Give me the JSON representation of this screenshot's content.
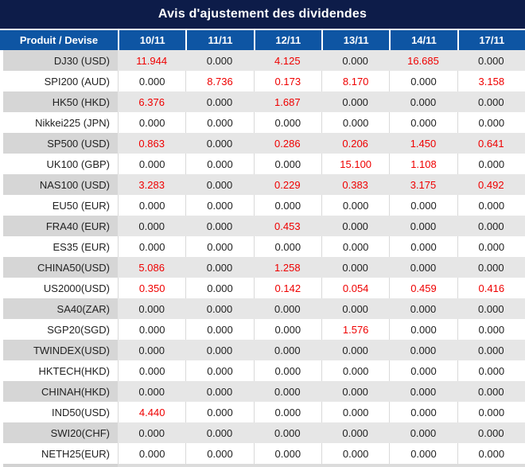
{
  "chart_data": {
    "type": "table",
    "title": "Avis d'ajustement des dividendes",
    "columns": [
      "Produit / Devise",
      "10/11",
      "11/11",
      "12/11",
      "13/11",
      "14/11",
      "17/11"
    ],
    "rows": [
      {
        "product": "DJ30 (USD)",
        "values": [
          "11.944",
          "0.000",
          "4.125",
          "0.000",
          "16.685",
          "0.000"
        ]
      },
      {
        "product": "SPI200 (AUD)",
        "values": [
          "0.000",
          "8.736",
          "0.173",
          "8.170",
          "0.000",
          "3.158"
        ]
      },
      {
        "product": "HK50 (HKD)",
        "values": [
          "6.376",
          "0.000",
          "1.687",
          "0.000",
          "0.000",
          "0.000"
        ]
      },
      {
        "product": "Nikkei225 (JPN)",
        "values": [
          "0.000",
          "0.000",
          "0.000",
          "0.000",
          "0.000",
          "0.000"
        ]
      },
      {
        "product": "SP500 (USD)",
        "values": [
          "0.863",
          "0.000",
          "0.286",
          "0.206",
          "1.450",
          "0.641"
        ]
      },
      {
        "product": "UK100 (GBP)",
        "values": [
          "0.000",
          "0.000",
          "0.000",
          "15.100",
          "1.108",
          "0.000"
        ]
      },
      {
        "product": "NAS100 (USD)",
        "values": [
          "3.283",
          "0.000",
          "0.229",
          "0.383",
          "3.175",
          "0.492"
        ]
      },
      {
        "product": "EU50 (EUR)",
        "values": [
          "0.000",
          "0.000",
          "0.000",
          "0.000",
          "0.000",
          "0.000"
        ]
      },
      {
        "product": "FRA40 (EUR)",
        "values": [
          "0.000",
          "0.000",
          "0.453",
          "0.000",
          "0.000",
          "0.000"
        ]
      },
      {
        "product": "ES35 (EUR)",
        "values": [
          "0.000",
          "0.000",
          "0.000",
          "0.000",
          "0.000",
          "0.000"
        ]
      },
      {
        "product": "CHINA50(USD)",
        "values": [
          "5.086",
          "0.000",
          "1.258",
          "0.000",
          "0.000",
          "0.000"
        ]
      },
      {
        "product": "US2000(USD)",
        "values": [
          "0.350",
          "0.000",
          "0.142",
          "0.054",
          "0.459",
          "0.416"
        ]
      },
      {
        "product": "SA40(ZAR)",
        "values": [
          "0.000",
          "0.000",
          "0.000",
          "0.000",
          "0.000",
          "0.000"
        ]
      },
      {
        "product": "SGP20(SGD)",
        "values": [
          "0.000",
          "0.000",
          "0.000",
          "1.576",
          "0.000",
          "0.000"
        ]
      },
      {
        "product": "TWINDEX(USD)",
        "values": [
          "0.000",
          "0.000",
          "0.000",
          "0.000",
          "0.000",
          "0.000"
        ]
      },
      {
        "product": "HKTECH(HKD)",
        "values": [
          "0.000",
          "0.000",
          "0.000",
          "0.000",
          "0.000",
          "0.000"
        ]
      },
      {
        "product": "CHINAH(HKD)",
        "values": [
          "0.000",
          "0.000",
          "0.000",
          "0.000",
          "0.000",
          "0.000"
        ]
      },
      {
        "product": "IND50(USD)",
        "values": [
          "4.440",
          "0.000",
          "0.000",
          "0.000",
          "0.000",
          "0.000"
        ]
      },
      {
        "product": "SWI20(CHF)",
        "values": [
          "0.000",
          "0.000",
          "0.000",
          "0.000",
          "0.000",
          "0.000"
        ]
      },
      {
        "product": "NETH25(EUR)",
        "values": [
          "0.000",
          "0.000",
          "0.000",
          "0.000",
          "0.000",
          "0.000"
        ]
      }
    ],
    "zero_value_display": "0.000"
  },
  "colors": {
    "title_bar_bg": "#0d1c49",
    "header_row_bg": "#0e55a3",
    "header_text": "#ffffff",
    "alt_row_product_bg": "#d6d6d6",
    "alt_row_bg": "#e6e6e6",
    "zero_value_text": "#222222",
    "nonzero_value_text": "#ef0000"
  }
}
